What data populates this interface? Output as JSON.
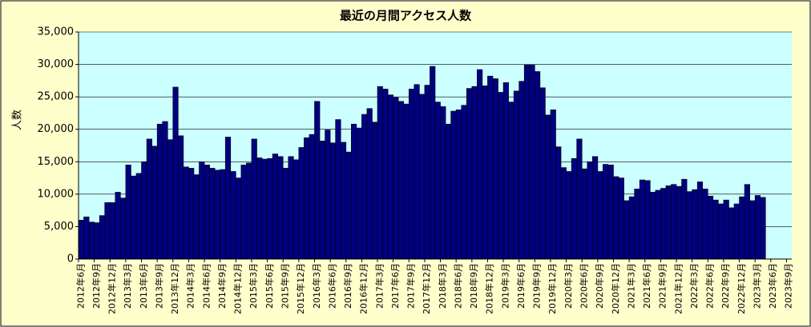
{
  "chart_data": {
    "type": "bar",
    "title": "最近の月間アクセス人数",
    "y_label": "人数",
    "categories": [
      "2012年6月",
      null,
      null,
      "2012年9月",
      null,
      null,
      "2012年12月",
      null,
      null,
      "2013年3月",
      null,
      null,
      "2013年6月",
      null,
      null,
      "2013年9月",
      null,
      null,
      "2013年12月",
      null,
      null,
      "2014年3月",
      null,
      null,
      "2014年6月",
      null,
      null,
      "2014年9月",
      null,
      null,
      "2014年12月",
      null,
      null,
      "2015年3月",
      null,
      null,
      "2015年6月",
      null,
      null,
      "2015年9月",
      null,
      null,
      "2015年12月",
      null,
      null,
      "2016年3月",
      null,
      null,
      "2016年6月",
      null,
      null,
      "2016年9月",
      null,
      null,
      "2016年12月",
      null,
      null,
      "2017年3月",
      null,
      null,
      "2017年6月",
      null,
      null,
      "2017年9月",
      null,
      null,
      "2017年12月",
      null,
      null,
      "2018年3月",
      null,
      null,
      "2018年6月",
      null,
      null,
      "2018年9月",
      null,
      null,
      "2018年12月",
      null,
      null,
      "2019年3月",
      null,
      null,
      "2019年6月",
      null,
      null,
      "2019年9月",
      null,
      null,
      "2019年12月",
      null,
      null,
      "2020年3月",
      null,
      null,
      "2020年6月",
      null,
      null,
      "2020年9月",
      null,
      null,
      "2020年12月",
      null,
      null,
      "2021年3月",
      null,
      null,
      "2021年6月",
      null,
      null,
      "2021年9月",
      null,
      null,
      "2021年12月",
      null,
      null,
      "2022年3月",
      null,
      null,
      "2022年6月",
      null,
      null,
      "2022年9月",
      null,
      null,
      "2022年12月",
      null,
      null,
      "2023年3月",
      null,
      null,
      "2023年6月",
      null,
      null,
      "2023年9月"
    ],
    "values": [
      6000,
      6500,
      5700,
      5600,
      6700,
      8700,
      8700,
      10300,
      9400,
      14500,
      12800,
      13200,
      15000,
      18500,
      17400,
      20800,
      21200,
      18400,
      26500,
      19000,
      14200,
      14000,
      13000,
      15000,
      14500,
      14000,
      13700,
      13800,
      18800,
      13500,
      12500,
      14500,
      14800,
      18500,
      15600,
      15400,
      15500,
      16200,
      15800,
      14000,
      15800,
      15300,
      17200,
      18700,
      19200,
      24300,
      18200,
      19900,
      17900,
      21500,
      18000,
      16500,
      20800,
      20200,
      22300,
      23200,
      21100,
      26600,
      26200,
      25300,
      24900,
      24300,
      23900,
      26200,
      26900,
      25400,
      26800,
      29700,
      24200,
      23500,
      20800,
      22800,
      23000,
      23700,
      26300,
      26600,
      29200,
      26700,
      28200,
      27800,
      25700,
      27200,
      24200,
      25900,
      27400,
      29900,
      29900,
      28900,
      26400,
      22200,
      23000,
      17300,
      14100,
      13500,
      15500,
      18500,
      13900,
      15000,
      15800,
      13500,
      14600,
      14500,
      12700,
      12500,
      9000,
      9600,
      10800,
      12200,
      12100,
      10300,
      10600,
      10900,
      11300,
      11500,
      11200,
      12300,
      10400,
      10700,
      11900,
      10800,
      9700,
      9100,
      8500,
      9100,
      7900,
      8500,
      9600,
      11500,
      9000,
      9800,
      9500,
      null,
      null,
      null,
      null,
      null
    ],
    "color": "#000080",
    "ylim": [
      0,
      35000
    ],
    "yticks": [
      0,
      {
        "value": 5000,
        "label": "5,000"
      },
      {
        "value": 10000,
        "label": "10,000"
      },
      {
        "value": 15000,
        "label": "15,000"
      },
      {
        "value": 20000,
        "label": "20,000"
      },
      {
        "value": 25000,
        "label": "25,000"
      },
      {
        "value": 30000,
        "label": "30,000"
      },
      {
        "value": 35000,
        "label": "35,000"
      }
    ],
    "grid": true
  }
}
